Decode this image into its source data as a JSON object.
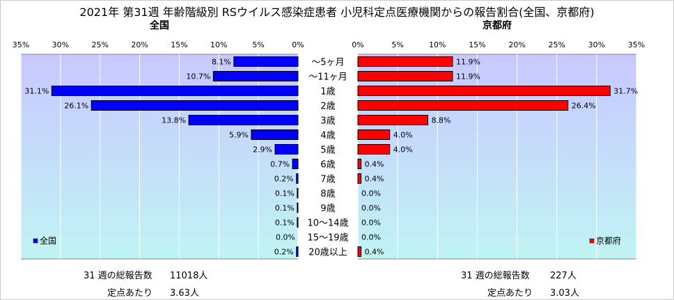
{
  "title": "2021年 第31週 年齢階級別 RSウイルス感染症患者 小児科定点医療機関からの報告割合(全国、京都府)",
  "chart_data": [
    {
      "type": "bar",
      "orientation": "horizontal",
      "direction": "right-to-left",
      "title": "全国",
      "categories": [
        "～5ヶ月",
        "～11ヶ月",
        "1歳",
        "2歳",
        "3歳",
        "4歳",
        "5歳",
        "6歳",
        "7歳",
        "8歳",
        "9歳",
        "10～14歳",
        "15～19歳",
        "20歳以上"
      ],
      "series": [
        {
          "name": "全国",
          "values": [
            8.1,
            10.7,
            31.1,
            26.1,
            13.8,
            5.9,
            2.9,
            0.7,
            0.2,
            0.1,
            0.1,
            0.1,
            0.0,
            0.2
          ],
          "labels": [
            "8.1%",
            "10.7%",
            "31.1%",
            "26.1%",
            "13.8%",
            "5.9%",
            "2.9%",
            "0.7%",
            "0.2%",
            "0.1%",
            "0.1%",
            "0.1%",
            "0.0%",
            "0.2%"
          ],
          "color": "#0000ff"
        }
      ],
      "xlim": [
        0,
        35
      ],
      "ticks": [
        "35%",
        "30%",
        "25%",
        "20%",
        "15%",
        "10%",
        "5%",
        "0%"
      ],
      "grid": true,
      "legend": "bottom-left",
      "plot_background": [
        "#c8c8ff",
        "#c0f4f4"
      ]
    },
    {
      "type": "bar",
      "orientation": "horizontal",
      "direction": "left-to-right",
      "title": "京都府",
      "categories": [
        "～5ヶ月",
        "～11ヶ月",
        "1歳",
        "2歳",
        "3歳",
        "4歳",
        "5歳",
        "6歳",
        "7歳",
        "8歳",
        "9歳",
        "10～14歳",
        "15～19歳",
        "20歳以上"
      ],
      "series": [
        {
          "name": "京都府",
          "values": [
            11.9,
            11.9,
            31.7,
            26.4,
            8.8,
            4.0,
            4.0,
            0.4,
            0.4,
            0.0,
            0.0,
            0.0,
            0.0,
            0.4
          ],
          "labels": [
            "11.9%",
            "11.9%",
            "31.7%",
            "26.4%",
            "8.8%",
            "4.0%",
            "4.0%",
            "0.4%",
            "0.4%",
            "0.0%",
            "0.0%",
            "0.0%",
            "0.0%",
            "0.4%"
          ],
          "color": "#ff0000"
        }
      ],
      "xlim": [
        0,
        35
      ],
      "ticks": [
        "0%",
        "5%",
        "10%",
        "15%",
        "20%",
        "25%",
        "30%",
        "35%"
      ],
      "grid": true,
      "legend": "bottom-right",
      "plot_background": [
        "#c8c8ff",
        "#c0f4f4"
      ]
    }
  ],
  "stats": {
    "national": {
      "total_label": "31 週の総報告数",
      "total_value": "11018人",
      "per_label": "定点あたり",
      "per_value": "3.63人"
    },
    "kyoto": {
      "total_label": "31 週の総報告数",
      "total_value": "227人",
      "per_label": "定点あたり",
      "per_value": "3.03人"
    }
  }
}
